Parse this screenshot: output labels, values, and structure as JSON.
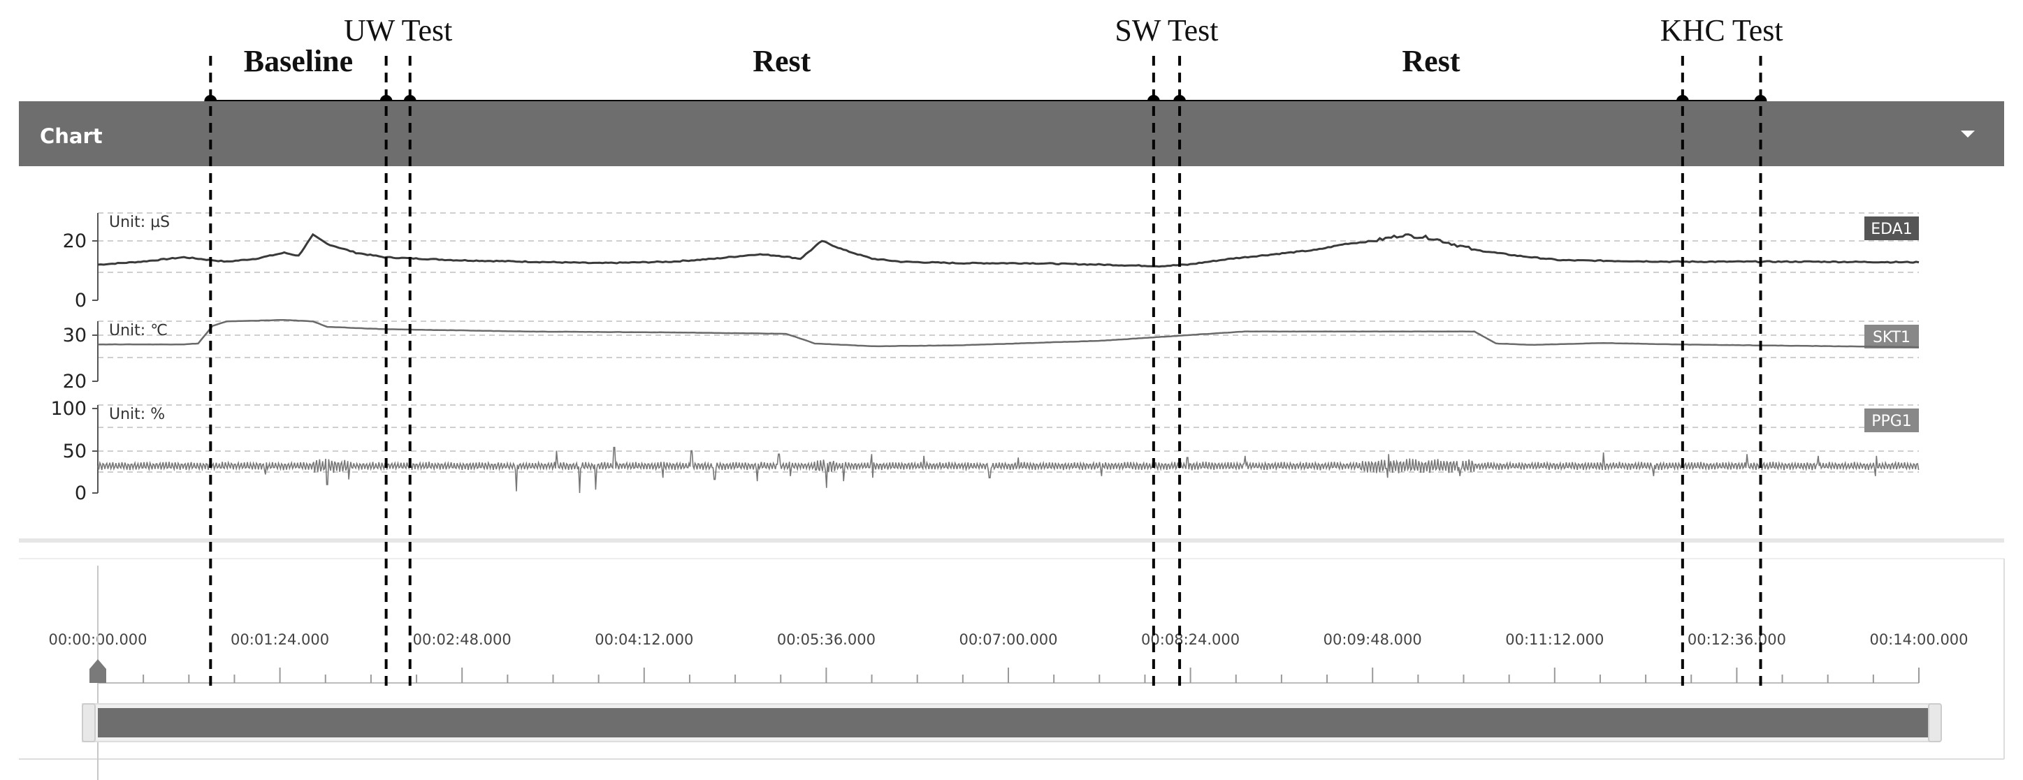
{
  "panel": {
    "title": "Chart",
    "menu_icon": "caret-down-icon"
  },
  "phases": {
    "labels": [
      {
        "text": "Baseline",
        "bold": true,
        "row": "lower"
      },
      {
        "text": "UW Test",
        "bold": false,
        "row": "upper"
      },
      {
        "text": "Rest",
        "bold": true,
        "row": "lower"
      },
      {
        "text": "SW Test",
        "bold": false,
        "row": "upper"
      },
      {
        "text": "Rest",
        "bold": true,
        "row": "lower"
      },
      {
        "text": "KHC Test",
        "bold": false,
        "row": "upper"
      }
    ],
    "markers_sec": [
      52,
      133,
      144,
      487,
      499,
      731,
      767
    ]
  },
  "chart_data": {
    "type": "line",
    "x_unit": "seconds",
    "xlim": [
      0,
      840
    ],
    "tick_labels": [
      "00:00:00.000",
      "00:01:24.000",
      "00:02:48.000",
      "00:04:12.000",
      "00:05:36.000",
      "00:07:00.000",
      "00:08:24.000",
      "00:09:48.000",
      "00:11:12.000",
      "00:12:36.000",
      "00:14:00.000"
    ],
    "tracks": [
      {
        "name": "EDA1",
        "unit_label": "Unit: µS",
        "yticks": [
          "20",
          "0"
        ],
        "ylim": [
          0,
          25
        ],
        "color": "#3a3a3a",
        "badge_color": "#555555",
        "points": [
          [
            0,
            12
          ],
          [
            30,
            13
          ],
          [
            60,
            14.5
          ],
          [
            90,
            13
          ],
          [
            110,
            14
          ],
          [
            130,
            16
          ],
          [
            140,
            15
          ],
          [
            150,
            22
          ],
          [
            160,
            19
          ],
          [
            180,
            16
          ],
          [
            200,
            14.5
          ],
          [
            250,
            13.5
          ],
          [
            300,
            13
          ],
          [
            350,
            12.5
          ],
          [
            400,
            13
          ],
          [
            430,
            14
          ],
          [
            460,
            15.5
          ],
          [
            475,
            15
          ],
          [
            490,
            14
          ],
          [
            505,
            20
          ],
          [
            520,
            17
          ],
          [
            540,
            14
          ],
          [
            560,
            13
          ],
          [
            600,
            12.5
          ],
          [
            650,
            12.5
          ],
          [
            700,
            12
          ],
          [
            740,
            11.5
          ],
          [
            760,
            12
          ],
          [
            790,
            14
          ],
          [
            830,
            16
          ],
          [
            850,
            17
          ],
          [
            870,
            19
          ],
          [
            890,
            20
          ],
          [
            910,
            22
          ],
          [
            930,
            21
          ],
          [
            960,
            17
          ],
          [
            990,
            15
          ],
          [
            1020,
            13.5
          ],
          [
            1100,
            13
          ],
          [
            1200,
            13
          ],
          [
            1270,
            12.8
          ]
        ]
      },
      {
        "name": "SKT1",
        "unit_label": "Unit: ℃",
        "yticks": [
          "30",
          "20"
        ],
        "ylim": [
          18,
          36
        ],
        "color": "#6a6a6a",
        "badge_color": "#888888",
        "points": [
          [
            0,
            28
          ],
          [
            60,
            28
          ],
          [
            70,
            28.2
          ],
          [
            80,
            32
          ],
          [
            90,
            33
          ],
          [
            130,
            33.3
          ],
          [
            150,
            33
          ],
          [
            160,
            31.8
          ],
          [
            200,
            31.3
          ],
          [
            300,
            30.8
          ],
          [
            400,
            30.6
          ],
          [
            480,
            30.3
          ],
          [
            500,
            28.2
          ],
          [
            540,
            27.6
          ],
          [
            600,
            27.8
          ],
          [
            700,
            28.8
          ],
          [
            800,
            30.8
          ],
          [
            830,
            30.8
          ],
          [
            960,
            30.8
          ],
          [
            975,
            28.2
          ],
          [
            1000,
            27.9
          ],
          [
            1050,
            28.3
          ],
          [
            1100,
            28
          ],
          [
            1270,
            27.4
          ]
        ]
      },
      {
        "name": "PPG1",
        "unit_label": "Unit: %",
        "yticks": [
          "100",
          "50",
          "0"
        ],
        "ylim": [
          0,
          100
        ],
        "color": "#777777",
        "badge_color": "#888888",
        "baseline": 32,
        "spikes": [
          [
            117,
            10
          ],
          [
            160,
            22
          ],
          [
            175,
            16
          ],
          [
            292,
            30
          ],
          [
            320,
            18
          ],
          [
            336,
            32
          ],
          [
            347,
            28
          ],
          [
            360,
            22
          ],
          [
            394,
            14
          ],
          [
            414,
            18
          ],
          [
            430,
            16
          ],
          [
            460,
            18
          ],
          [
            475,
            14
          ],
          [
            483,
            12
          ],
          [
            508,
            26
          ],
          [
            520,
            18
          ],
          [
            540,
            14
          ],
          [
            576,
            12
          ],
          [
            622,
            14
          ],
          [
            642,
            10
          ],
          [
            700,
            12
          ],
          [
            760,
            10
          ],
          [
            800,
            12
          ],
          [
            900,
            14
          ],
          [
            950,
            12
          ],
          [
            1050,
            16
          ],
          [
            1085,
            12
          ],
          [
            1150,
            14
          ],
          [
            1200,
            12
          ],
          [
            1240,
            12
          ]
        ]
      }
    ]
  }
}
